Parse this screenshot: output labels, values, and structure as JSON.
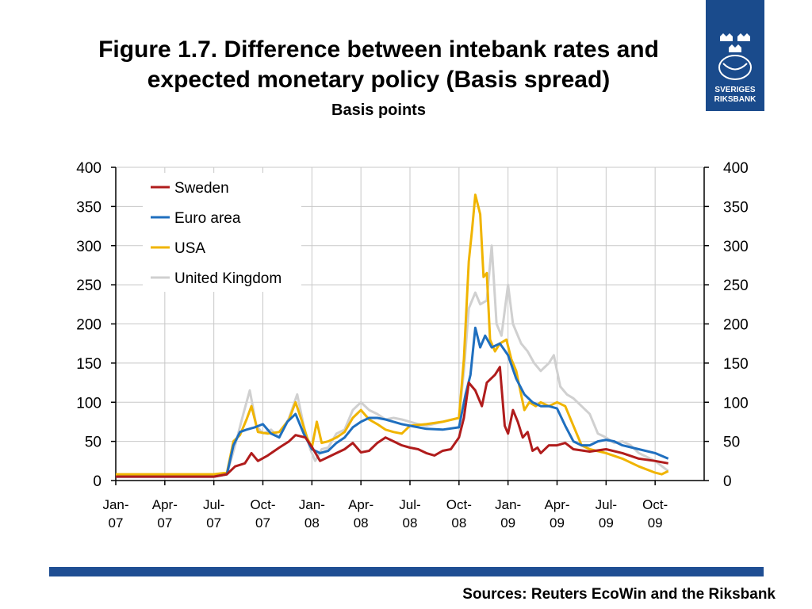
{
  "title_line1": "Figure 1.7. Difference between intebank rates and",
  "title_line2": "expected monetary policy (Basis spread)",
  "subtitle": "Basis points",
  "logo_text": [
    "SVERIGES",
    "RIKSBANK"
  ],
  "source": "Sources: Reuters EcoWin and the Riksbank",
  "colors": {
    "brand_blue": "#1f4e93",
    "grid": "#c8c8c8"
  },
  "chart_data": {
    "type": "line",
    "title": "Figure 1.7. Difference between intebank rates and expected monetary policy (Basis spread)",
    "subtitle": "Basis points",
    "ylim": [
      0,
      400
    ],
    "y_ticks": [
      0,
      50,
      100,
      150,
      200,
      250,
      300,
      350,
      400
    ],
    "y2_ticks": [
      0,
      50,
      100,
      150,
      200,
      250,
      300,
      350,
      400
    ],
    "x_ticks": [
      {
        "x": 0,
        "top": "Jan-",
        "bottom": "07"
      },
      {
        "x": 3,
        "top": "Apr-",
        "bottom": "07"
      },
      {
        "x": 6,
        "top": "Jul-",
        "bottom": "07"
      },
      {
        "x": 9,
        "top": "Oct-",
        "bottom": "07"
      },
      {
        "x": 12,
        "top": "Jan-",
        "bottom": "08"
      },
      {
        "x": 15,
        "top": "Apr-",
        "bottom": "08"
      },
      {
        "x": 18,
        "top": "Jul-",
        "bottom": "08"
      },
      {
        "x": 21,
        "top": "Oct-",
        "bottom": "08"
      },
      {
        "x": 24,
        "top": "Jan-",
        "bottom": "09"
      },
      {
        "x": 27,
        "top": "Apr-",
        "bottom": "09"
      },
      {
        "x": 30,
        "top": "Jul-",
        "bottom": "09"
      },
      {
        "x": 33,
        "top": "Oct-",
        "bottom": "09"
      }
    ],
    "xlim": [
      0,
      36
    ],
    "grid": true,
    "legend": "top-left",
    "series": [
      {
        "name": "Sweden",
        "color": "#b01c1c",
        "points": [
          [
            0,
            5
          ],
          [
            1,
            5
          ],
          [
            2,
            5
          ],
          [
            3,
            5
          ],
          [
            4,
            5
          ],
          [
            5,
            5
          ],
          [
            6,
            5
          ],
          [
            6.8,
            8
          ],
          [
            7.3,
            18
          ],
          [
            7.9,
            22
          ],
          [
            8.3,
            35
          ],
          [
            8.7,
            25
          ],
          [
            9.3,
            32
          ],
          [
            10,
            42
          ],
          [
            10.6,
            50
          ],
          [
            11,
            58
          ],
          [
            11.6,
            55
          ],
          [
            12,
            43
          ],
          [
            12.5,
            25
          ],
          [
            13,
            30
          ],
          [
            13.5,
            35
          ],
          [
            14,
            40
          ],
          [
            14.5,
            48
          ],
          [
            15,
            36
          ],
          [
            15.5,
            38
          ],
          [
            16,
            48
          ],
          [
            16.5,
            55
          ],
          [
            17,
            50
          ],
          [
            17.5,
            45
          ],
          [
            18,
            42
          ],
          [
            18.5,
            40
          ],
          [
            19,
            35
          ],
          [
            19.5,
            32
          ],
          [
            20,
            38
          ],
          [
            20.5,
            40
          ],
          [
            21,
            55
          ],
          [
            21.3,
            80
          ],
          [
            21.6,
            125
          ],
          [
            22,
            115
          ],
          [
            22.4,
            95
          ],
          [
            22.7,
            125
          ],
          [
            23.2,
            135
          ],
          [
            23.5,
            145
          ],
          [
            23.8,
            70
          ],
          [
            24,
            60
          ],
          [
            24.3,
            90
          ],
          [
            24.6,
            75
          ],
          [
            24.9,
            55
          ],
          [
            25.2,
            62
          ],
          [
            25.5,
            38
          ],
          [
            25.8,
            42
          ],
          [
            26,
            35
          ],
          [
            26.5,
            45
          ],
          [
            27,
            45
          ],
          [
            27.5,
            48
          ],
          [
            28,
            40
          ],
          [
            29,
            37
          ],
          [
            30,
            40
          ],
          [
            31,
            35
          ],
          [
            32,
            28
          ],
          [
            33,
            25
          ],
          [
            33.8,
            22
          ]
        ]
      },
      {
        "name": "Euro area",
        "color": "#1f6fbf",
        "points": [
          [
            0,
            5
          ],
          [
            1,
            5
          ],
          [
            2,
            5
          ],
          [
            3,
            5
          ],
          [
            4,
            5
          ],
          [
            5,
            5
          ],
          [
            6,
            5
          ],
          [
            6.8,
            8
          ],
          [
            7.2,
            45
          ],
          [
            7.6,
            62
          ],
          [
            8,
            65
          ],
          [
            8.5,
            68
          ],
          [
            9,
            72
          ],
          [
            9.5,
            60
          ],
          [
            10,
            55
          ],
          [
            10.5,
            75
          ],
          [
            11,
            85
          ],
          [
            11.5,
            60
          ],
          [
            12,
            40
          ],
          [
            12.5,
            35
          ],
          [
            13,
            38
          ],
          [
            13.5,
            48
          ],
          [
            14,
            55
          ],
          [
            14.5,
            68
          ],
          [
            15,
            75
          ],
          [
            15.5,
            80
          ],
          [
            16,
            80
          ],
          [
            16.5,
            78
          ],
          [
            17,
            75
          ],
          [
            17.5,
            72
          ],
          [
            18,
            70
          ],
          [
            19,
            66
          ],
          [
            20,
            65
          ],
          [
            21,
            68
          ],
          [
            21.4,
            110
          ],
          [
            21.7,
            135
          ],
          [
            22,
            195
          ],
          [
            22.3,
            170
          ],
          [
            22.6,
            185
          ],
          [
            23,
            170
          ],
          [
            23.5,
            175
          ],
          [
            24,
            160
          ],
          [
            24.5,
            130
          ],
          [
            25,
            110
          ],
          [
            25.5,
            100
          ],
          [
            26,
            95
          ],
          [
            26.5,
            95
          ],
          [
            27,
            92
          ],
          [
            27.5,
            70
          ],
          [
            28,
            50
          ],
          [
            28.5,
            45
          ],
          [
            29,
            45
          ],
          [
            29.5,
            50
          ],
          [
            30,
            52
          ],
          [
            30.5,
            50
          ],
          [
            31,
            45
          ],
          [
            32,
            40
          ],
          [
            33,
            35
          ],
          [
            33.8,
            28
          ]
        ]
      },
      {
        "name": "USA",
        "color": "#f0b400",
        "points": [
          [
            0,
            8
          ],
          [
            1,
            8
          ],
          [
            2,
            8
          ],
          [
            3,
            8
          ],
          [
            4,
            8
          ],
          [
            5,
            8
          ],
          [
            6,
            8
          ],
          [
            6.8,
            10
          ],
          [
            7.2,
            50
          ],
          [
            7.6,
            58
          ],
          [
            8,
            78
          ],
          [
            8.3,
            95
          ],
          [
            8.7,
            62
          ],
          [
            9.3,
            60
          ],
          [
            10,
            62
          ],
          [
            10.6,
            78
          ],
          [
            11,
            100
          ],
          [
            11.4,
            75
          ],
          [
            11.7,
            55
          ],
          [
            12,
            42
          ],
          [
            12.3,
            75
          ],
          [
            12.6,
            48
          ],
          [
            13,
            50
          ],
          [
            13.5,
            55
          ],
          [
            14,
            62
          ],
          [
            14.5,
            80
          ],
          [
            15,
            90
          ],
          [
            15.5,
            78
          ],
          [
            16,
            72
          ],
          [
            16.5,
            65
          ],
          [
            17,
            62
          ],
          [
            17.5,
            60
          ],
          [
            18,
            70
          ],
          [
            19,
            72
          ],
          [
            20,
            75
          ],
          [
            21,
            80
          ],
          [
            21.3,
            155
          ],
          [
            21.6,
            280
          ],
          [
            21.8,
            320
          ],
          [
            22,
            365
          ],
          [
            22.3,
            340
          ],
          [
            22.5,
            260
          ],
          [
            22.7,
            265
          ],
          [
            22.9,
            180
          ],
          [
            23.2,
            165
          ],
          [
            23.5,
            175
          ],
          [
            23.9,
            180
          ],
          [
            24.2,
            155
          ],
          [
            24.5,
            140
          ],
          [
            25,
            90
          ],
          [
            25.3,
            100
          ],
          [
            25.7,
            95
          ],
          [
            26,
            100
          ],
          [
            26.5,
            95
          ],
          [
            27,
            100
          ],
          [
            27.5,
            95
          ],
          [
            28,
            70
          ],
          [
            28.5,
            45
          ],
          [
            29,
            40
          ],
          [
            30,
            35
          ],
          [
            31,
            28
          ],
          [
            32,
            18
          ],
          [
            33,
            10
          ],
          [
            33.4,
            8
          ],
          [
            33.8,
            12
          ]
        ]
      },
      {
        "name": "United Kingdom",
        "color": "#d0d0d0",
        "points": [
          [
            0,
            6
          ],
          [
            1,
            6
          ],
          [
            2,
            6
          ],
          [
            3,
            6
          ],
          [
            4,
            6
          ],
          [
            5,
            6
          ],
          [
            6,
            6
          ],
          [
            6.8,
            8
          ],
          [
            7.3,
            45
          ],
          [
            7.8,
            85
          ],
          [
            8.2,
            115
          ],
          [
            8.6,
            70
          ],
          [
            9,
            60
          ],
          [
            9.5,
            65
          ],
          [
            10,
            55
          ],
          [
            10.6,
            80
          ],
          [
            11.1,
            110
          ],
          [
            11.5,
            70
          ],
          [
            11.9,
            40
          ],
          [
            12.2,
            25
          ],
          [
            12.6,
            40
          ],
          [
            13,
            42
          ],
          [
            13.5,
            60
          ],
          [
            14,
            65
          ],
          [
            14.5,
            90
          ],
          [
            15,
            100
          ],
          [
            15.5,
            90
          ],
          [
            16,
            85
          ],
          [
            16.5,
            78
          ],
          [
            17,
            80
          ],
          [
            17.5,
            78
          ],
          [
            18,
            75
          ],
          [
            18.5,
            72
          ],
          [
            19,
            70
          ],
          [
            20,
            75
          ],
          [
            21,
            80
          ],
          [
            21.3,
            140
          ],
          [
            21.6,
            220
          ],
          [
            22,
            240
          ],
          [
            22.3,
            225
          ],
          [
            22.7,
            230
          ],
          [
            23,
            300
          ],
          [
            23.3,
            200
          ],
          [
            23.6,
            185
          ],
          [
            24,
            250
          ],
          [
            24.3,
            200
          ],
          [
            24.8,
            175
          ],
          [
            25.2,
            165
          ],
          [
            25.6,
            150
          ],
          [
            26,
            140
          ],
          [
            26.5,
            150
          ],
          [
            26.8,
            160
          ],
          [
            27.2,
            120
          ],
          [
            27.6,
            110
          ],
          [
            28,
            105
          ],
          [
            28.5,
            95
          ],
          [
            29,
            85
          ],
          [
            29.5,
            60
          ],
          [
            30,
            55
          ],
          [
            30.5,
            48
          ],
          [
            31,
            50
          ],
          [
            31.5,
            45
          ],
          [
            32,
            35
          ],
          [
            33,
            25
          ],
          [
            33.8,
            12
          ]
        ]
      }
    ]
  }
}
